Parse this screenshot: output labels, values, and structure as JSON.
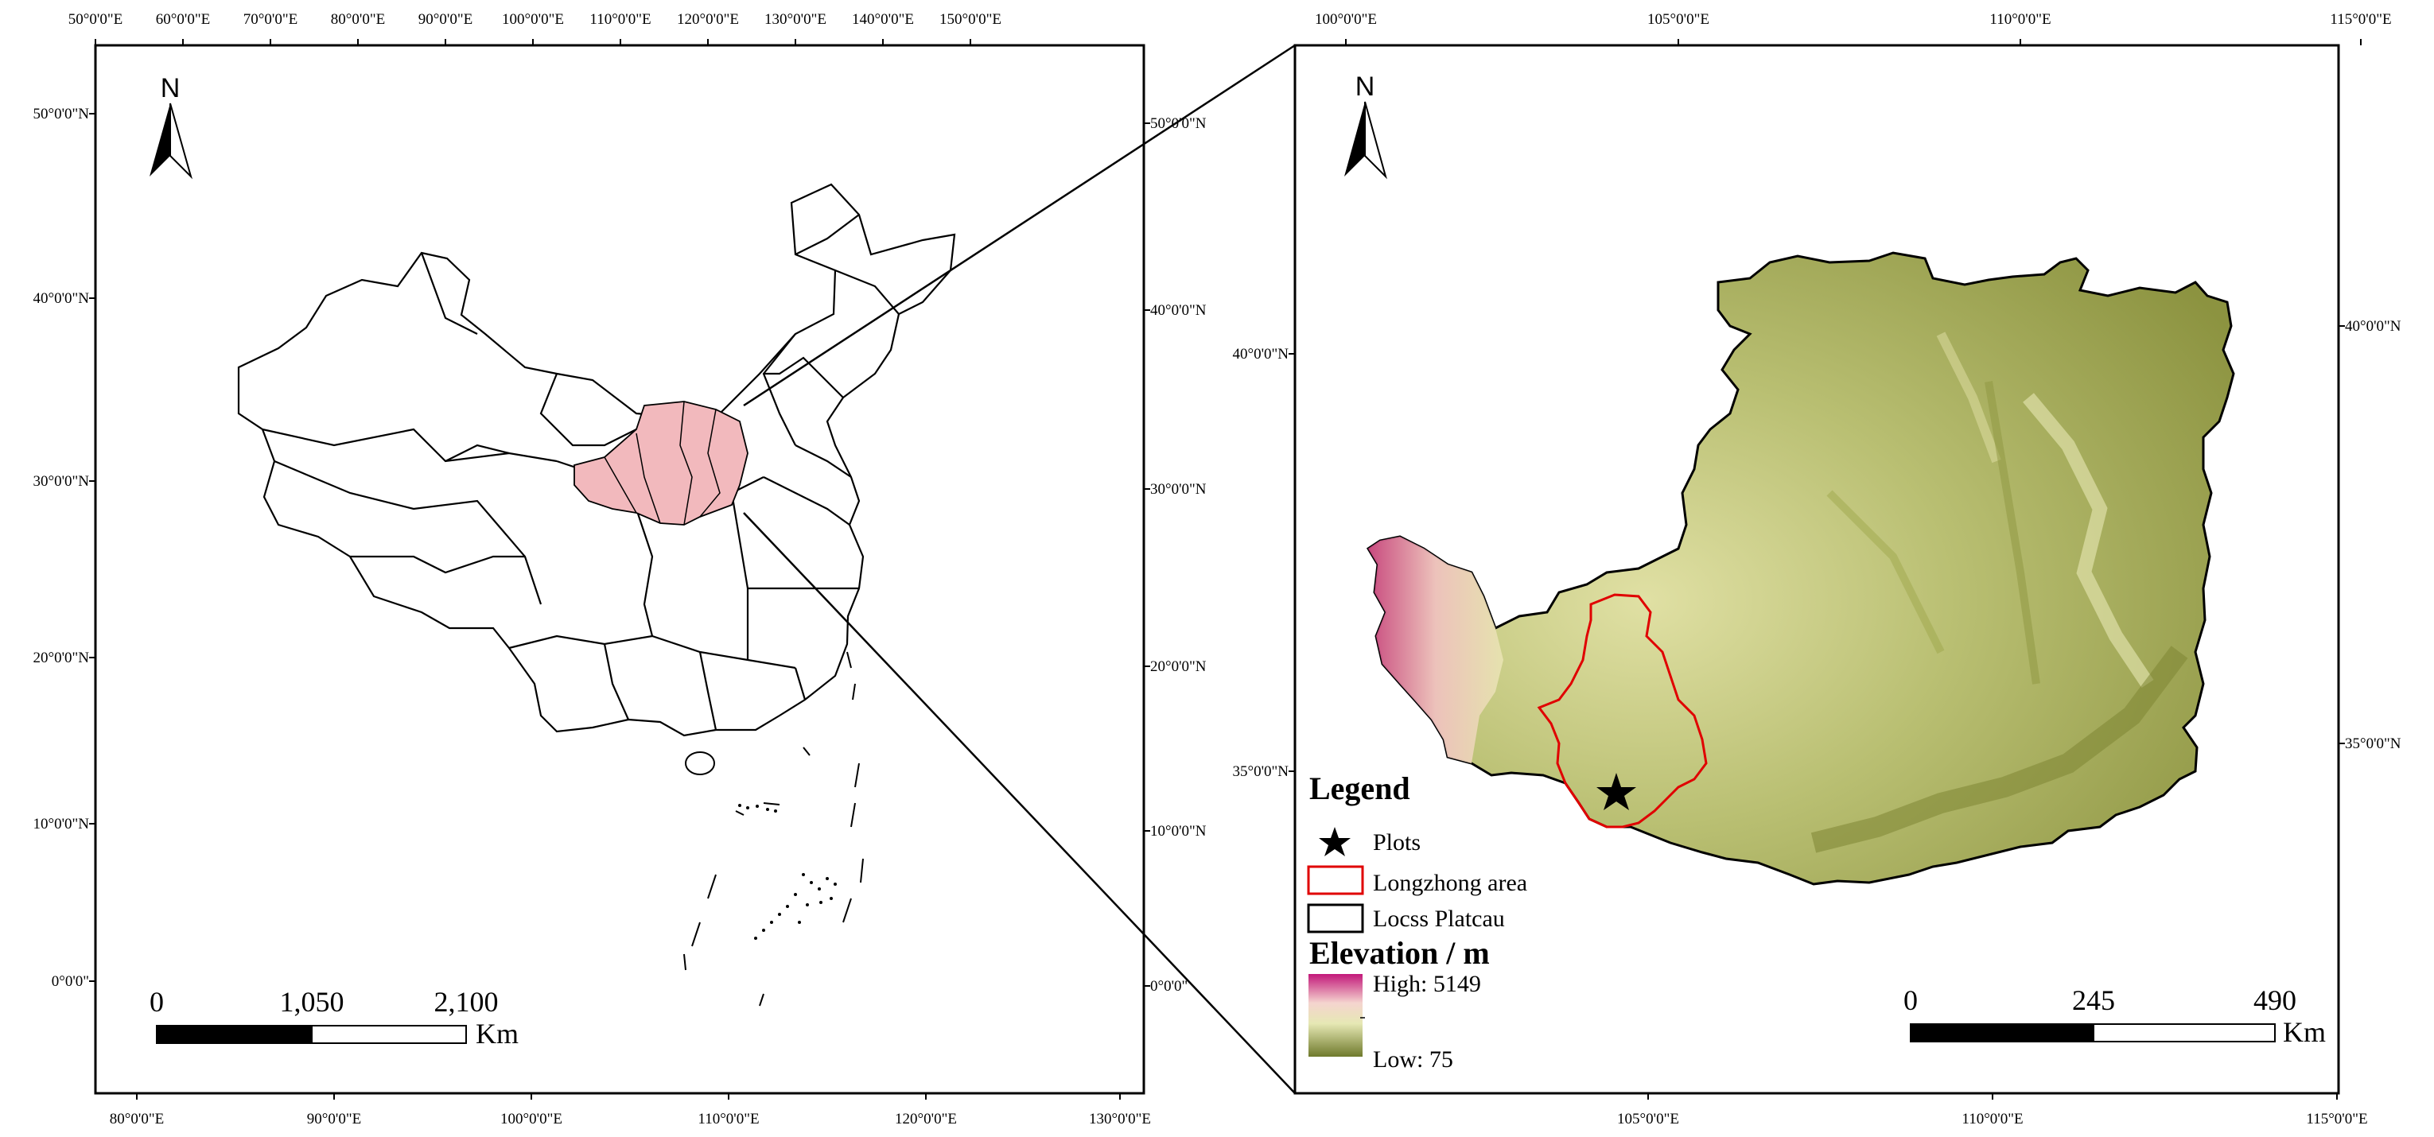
{
  "left_map": {
    "top_ticks": [
      "50°0'0\"E",
      "60°0'0\"E",
      "70°0'0\"E",
      "80°0'0\"E",
      "90°0'0\"E",
      "100°0'0\"E",
      "110°0'0\"E",
      "120°0'0\"E",
      "130°0'0\"E",
      "140°0'0\"E",
      "150°0'0\"E"
    ],
    "bottom_ticks": [
      "80°0'0\"E",
      "90°0'0\"E",
      "100°0'0\"E",
      "110°0'0\"E",
      "120°0'0\"E",
      "130°0'0\"E"
    ],
    "left_ticks": [
      "50°0'0\"N",
      "40°0'0\"N",
      "30°0'0\"N",
      "20°0'0\"N",
      "10°0'0\"N",
      "0°0'0\""
    ],
    "right_ticks": [
      "50°0'0\"N",
      "40°0'0\"N",
      "30°0'0\"N",
      "20°0'0\"N",
      "10°0'0\"N",
      "0°0'0\""
    ],
    "north_label": "N",
    "scale": {
      "labels": [
        "0",
        "1,050",
        "2,100"
      ],
      "unit": "Km"
    }
  },
  "right_map": {
    "top_ticks": [
      "100°0'0\"E",
      "105°0'0\"E",
      "110°0'0\"E",
      "115°0'0\"E"
    ],
    "bottom_ticks": [
      "105°0'0\"E",
      "110°0'0\"E",
      "115°0'0\"E"
    ],
    "left_ticks": [
      "40°0'0\"N",
      "35°0'0\"N"
    ],
    "right_ticks": [
      "40°0'0\"N",
      "35°0'0\"N"
    ],
    "north_label": "N",
    "scale": {
      "labels": [
        "0",
        "245",
        "490"
      ],
      "unit": "Km"
    }
  },
  "legend": {
    "title": "Legend",
    "items": [
      {
        "label": "Plots",
        "symbol": "star"
      },
      {
        "label": "Longzhong area",
        "symbol": "red-outline-box"
      },
      {
        "label": "Locss Platcau",
        "symbol": "black-outline-box"
      }
    ],
    "elevation_title": "Elevation / m",
    "high_label": "High: 5149",
    "low_label": "Low: 75"
  },
  "colors": {
    "highlight_fill": "#f2b9bd",
    "longzhong_outline": "#e00000",
    "elev_high": "#c2187a",
    "elev_mid_high": "#f5d4cf",
    "elev_mid": "#e6e8b4",
    "elev_low": "#6f7a2c"
  }
}
